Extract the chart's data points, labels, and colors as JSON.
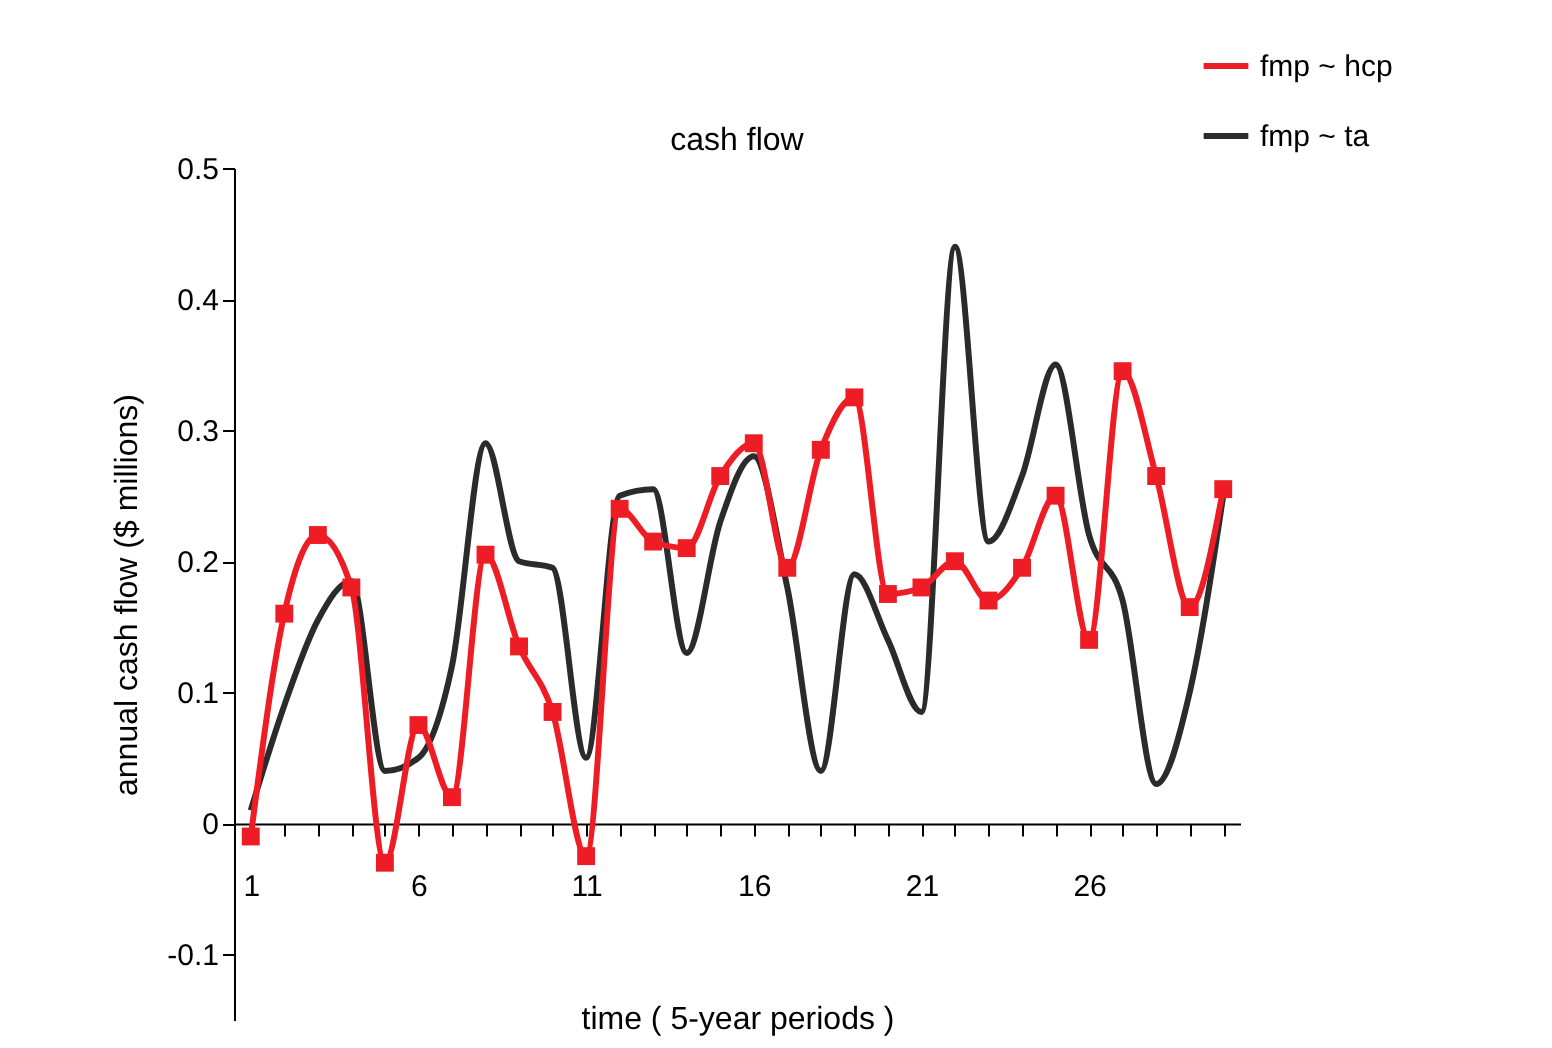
{
  "chart_data": {
    "type": "line",
    "title": "cash flow",
    "xlabel": "time ( 5-year periods )",
    "ylabel": "annual cash flow ($ millions)",
    "x": [
      1,
      2,
      3,
      4,
      5,
      6,
      7,
      8,
      9,
      10,
      11,
      12,
      13,
      14,
      15,
      16,
      17,
      18,
      19,
      20,
      21,
      22,
      23,
      24,
      25,
      26,
      27,
      28,
      29,
      30
    ],
    "series": [
      {
        "name": "fmp ~ hcp",
        "color": "#ee1c25",
        "marker": "square",
        "values": [
          -0.01,
          0.16,
          0.22,
          0.18,
          -0.03,
          0.075,
          0.02,
          0.205,
          0.135,
          0.085,
          -0.025,
          0.24,
          0.215,
          0.21,
          0.265,
          0.29,
          0.195,
          0.285,
          0.325,
          0.175,
          0.18,
          0.2,
          0.17,
          0.195,
          0.25,
          0.14,
          0.345,
          0.265,
          0.165,
          0.255
        ]
      },
      {
        "name": "fmp ~ ta",
        "color": "#2b2b2b",
        "marker": "none",
        "values": [
          0.01,
          0.09,
          0.155,
          0.185,
          0.04,
          0.05,
          0.12,
          0.29,
          0.2,
          0.195,
          0.05,
          0.25,
          0.255,
          0.13,
          0.23,
          0.28,
          0.18,
          0.04,
          0.19,
          0.14,
          0.085,
          0.44,
          0.215,
          0.265,
          0.35,
          0.22,
          0.17,
          0.03,
          0.1,
          0.25
        ]
      }
    ],
    "xlim": [
      0.5,
      30.5
    ],
    "xticks": [
      1,
      {
        "value": 2,
        "label": null
      },
      {
        "value": 3,
        "label": null
      },
      {
        "value": 4,
        "label": null
      },
      {
        "value": 5,
        "label": null
      },
      6,
      {
        "value": 7,
        "label": null
      },
      {
        "value": 8,
        "label": null
      },
      {
        "value": 9,
        "label": null
      },
      {
        "value": 10,
        "label": null
      },
      11,
      {
        "value": 12,
        "label": null
      },
      {
        "value": 13,
        "label": null
      },
      {
        "value": 14,
        "label": null
      },
      {
        "value": 15,
        "label": null
      },
      16,
      {
        "value": 17,
        "label": null
      },
      {
        "value": 18,
        "label": null
      },
      {
        "value": 19,
        "label": null
      },
      {
        "value": 20,
        "label": null
      },
      21,
      {
        "value": 22,
        "label": null
      },
      {
        "value": 23,
        "label": null
      },
      {
        "value": 24,
        "label": null
      },
      {
        "value": 25,
        "label": null
      },
      26,
      {
        "value": 27,
        "label": null
      },
      {
        "value": 28,
        "label": null
      },
      {
        "value": 29,
        "label": null
      },
      {
        "value": 30,
        "label": null
      }
    ],
    "ylim": [
      -0.15,
      0.5
    ],
    "yticks": [
      -0.1,
      0,
      0.1,
      0.2,
      0.3,
      0.4,
      0.5
    ],
    "legend": "top right"
  }
}
